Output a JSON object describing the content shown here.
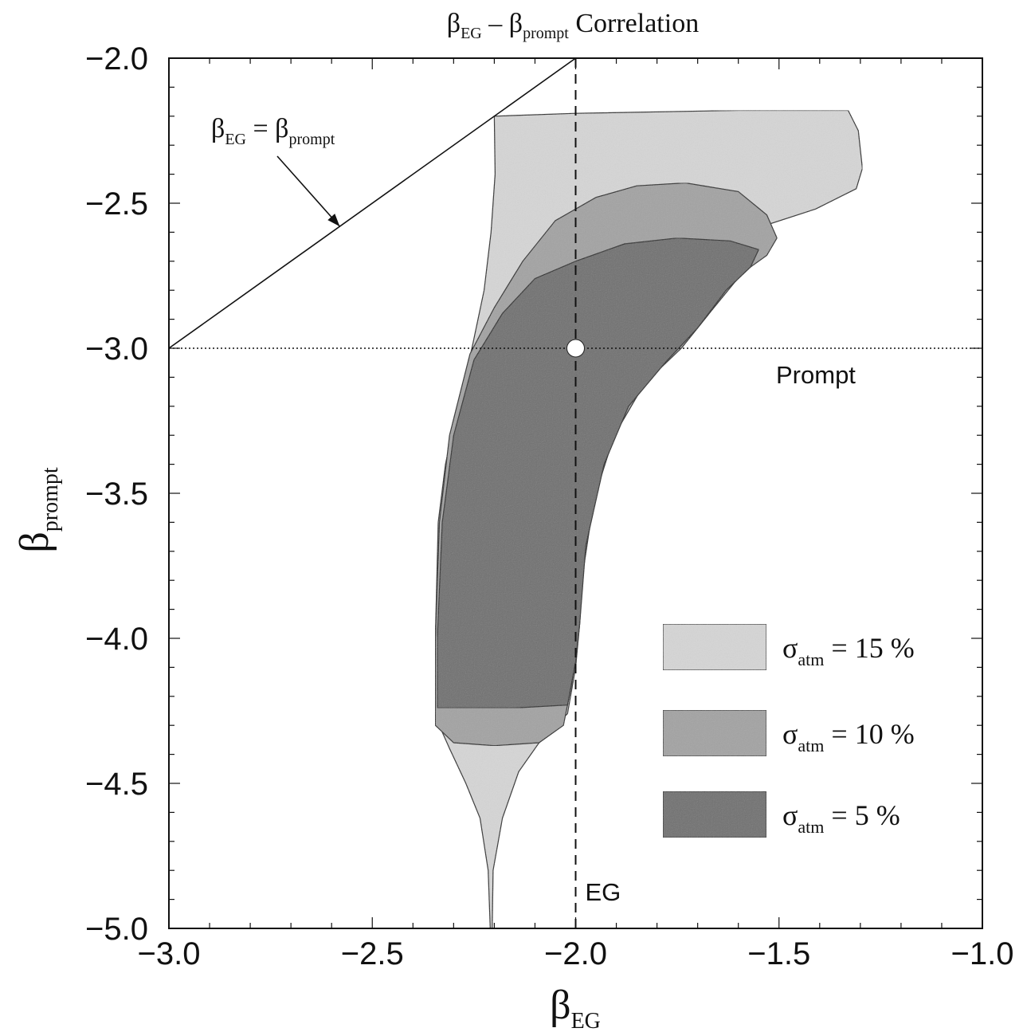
{
  "chart_data": {
    "type": "area",
    "title": {
      "sym": "β",
      "sub1": "EG",
      "dash": " – ",
      "sub2": "prompt",
      "rest": " Correlation"
    },
    "xlabel": {
      "sym": "β",
      "sub": "EG"
    },
    "ylabel": {
      "sym": "β",
      "sub": "prompt"
    },
    "xlim": [
      -3.0,
      -1.0
    ],
    "ylim": [
      -5.0,
      -2.0
    ],
    "xticks": [
      "−3.0",
      "−2.5",
      "−2.0",
      "−1.5",
      "−1.0"
    ],
    "yticks": [
      "−2.0",
      "−2.5",
      "−3.0",
      "−3.5",
      "−4.0",
      "−4.5",
      "−5.0"
    ],
    "x_tick_values": [
      -3.0,
      -2.5,
      -2.0,
      -1.5,
      -1.0
    ],
    "y_tick_values": [
      -2.0,
      -2.5,
      -3.0,
      -3.5,
      -4.0,
      -4.5,
      -5.0
    ],
    "grid": false,
    "legend_position": "bottom-right",
    "reference_lines": {
      "diagonal": {
        "label_sym": "β",
        "label_sub1": "EG",
        "label_eq": " = ",
        "label_sub2": "prompt",
        "from": [
          -3.0,
          -3.0
        ],
        "to": [
          -2.0,
          -2.0
        ],
        "arrow_tip": [
          -2.58,
          -2.58
        ],
        "label_at": [
          -2.88,
          -2.26
        ]
      },
      "prompt": {
        "label": "Prompt",
        "y": -3.0
      },
      "eg": {
        "label": "EG",
        "x": -2.0
      }
    },
    "best_fit_point": {
      "x": -2.0,
      "y": -3.0
    },
    "series": [
      {
        "sigma_label": {
          "sym": "σ",
          "sub": "atm",
          "text": " = 15 %"
        },
        "fill": "#d6d6d6",
        "points": [
          [
            -2.21,
            -5.0
          ],
          [
            -2.215,
            -4.8
          ],
          [
            -2.235,
            -4.62
          ],
          [
            -2.27,
            -4.5
          ],
          [
            -2.31,
            -4.38
          ],
          [
            -2.345,
            -4.27
          ],
          [
            -2.345,
            -4.0
          ],
          [
            -2.338,
            -3.6
          ],
          [
            -2.32,
            -3.4
          ],
          [
            -2.29,
            -3.2
          ],
          [
            -2.255,
            -3.0
          ],
          [
            -2.225,
            -2.8
          ],
          [
            -2.208,
            -2.6
          ],
          [
            -2.198,
            -2.4
          ],
          [
            -2.2,
            -2.2
          ],
          [
            -2.0,
            -2.19
          ],
          [
            -1.6,
            -2.18
          ],
          [
            -1.33,
            -2.18
          ],
          [
            -1.305,
            -2.25
          ],
          [
            -1.295,
            -2.38
          ],
          [
            -1.31,
            -2.45
          ],
          [
            -1.41,
            -2.52
          ],
          [
            -1.52,
            -2.57
          ],
          [
            -1.6,
            -2.68
          ],
          [
            -1.67,
            -2.83
          ],
          [
            -1.75,
            -2.98
          ],
          [
            -1.84,
            -3.12
          ],
          [
            -1.92,
            -3.32
          ],
          [
            -1.975,
            -3.62
          ],
          [
            -1.99,
            -3.95
          ],
          [
            -2.0,
            -4.1
          ],
          [
            -2.02,
            -4.26
          ],
          [
            -2.08,
            -4.34
          ],
          [
            -2.14,
            -4.46
          ],
          [
            -2.18,
            -4.62
          ],
          [
            -2.203,
            -4.8
          ],
          [
            -2.205,
            -5.0
          ]
        ]
      },
      {
        "sigma_label": {
          "sym": "σ",
          "sub": "atm",
          "text": " = 10 %"
        },
        "fill": "#a3a3a3",
        "points": [
          [
            -2.345,
            -4.28
          ],
          [
            -2.345,
            -4.0
          ],
          [
            -2.335,
            -3.6
          ],
          [
            -2.31,
            -3.3
          ],
          [
            -2.26,
            -3.02
          ],
          [
            -2.2,
            -2.86
          ],
          [
            -2.13,
            -2.7
          ],
          [
            -2.05,
            -2.56
          ],
          [
            -1.95,
            -2.48
          ],
          [
            -1.85,
            -2.44
          ],
          [
            -1.73,
            -2.43
          ],
          [
            -1.6,
            -2.46
          ],
          [
            -1.53,
            -2.54
          ],
          [
            -1.505,
            -2.62
          ],
          [
            -1.53,
            -2.68
          ],
          [
            -1.59,
            -2.74
          ],
          [
            -1.66,
            -2.86
          ],
          [
            -1.74,
            -3.0
          ],
          [
            -1.83,
            -3.12
          ],
          [
            -1.905,
            -3.3
          ],
          [
            -1.955,
            -3.52
          ],
          [
            -1.985,
            -3.8
          ],
          [
            -1.995,
            -4.0
          ],
          [
            -2.01,
            -4.16
          ],
          [
            -2.03,
            -4.3
          ],
          [
            -2.09,
            -4.36
          ],
          [
            -2.2,
            -4.37
          ],
          [
            -2.3,
            -4.36
          ],
          [
            -2.345,
            -4.3
          ]
        ]
      },
      {
        "sigma_label": {
          "sym": "σ",
          "sub": "atm",
          "text": " =  5 %"
        },
        "fill": "#707070",
        "points": [
          [
            -2.34,
            -4.24
          ],
          [
            -2.34,
            -4.0
          ],
          [
            -2.328,
            -3.6
          ],
          [
            -2.3,
            -3.3
          ],
          [
            -2.25,
            -3.04
          ],
          [
            -2.18,
            -2.88
          ],
          [
            -2.1,
            -2.76
          ],
          [
            -2.0,
            -2.7
          ],
          [
            -1.88,
            -2.64
          ],
          [
            -1.75,
            -2.62
          ],
          [
            -1.62,
            -2.63
          ],
          [
            -1.55,
            -2.66
          ],
          [
            -1.57,
            -2.72
          ],
          [
            -1.63,
            -2.8
          ],
          [
            -1.7,
            -2.93
          ],
          [
            -1.78,
            -3.05
          ],
          [
            -1.87,
            -3.2
          ],
          [
            -1.93,
            -3.4
          ],
          [
            -1.975,
            -3.68
          ],
          [
            -1.99,
            -3.95
          ],
          [
            -2.0,
            -4.08
          ],
          [
            -2.02,
            -4.23
          ],
          [
            -2.15,
            -4.24
          ],
          [
            -2.28,
            -4.24
          ],
          [
            -2.34,
            -4.24
          ]
        ]
      }
    ]
  }
}
